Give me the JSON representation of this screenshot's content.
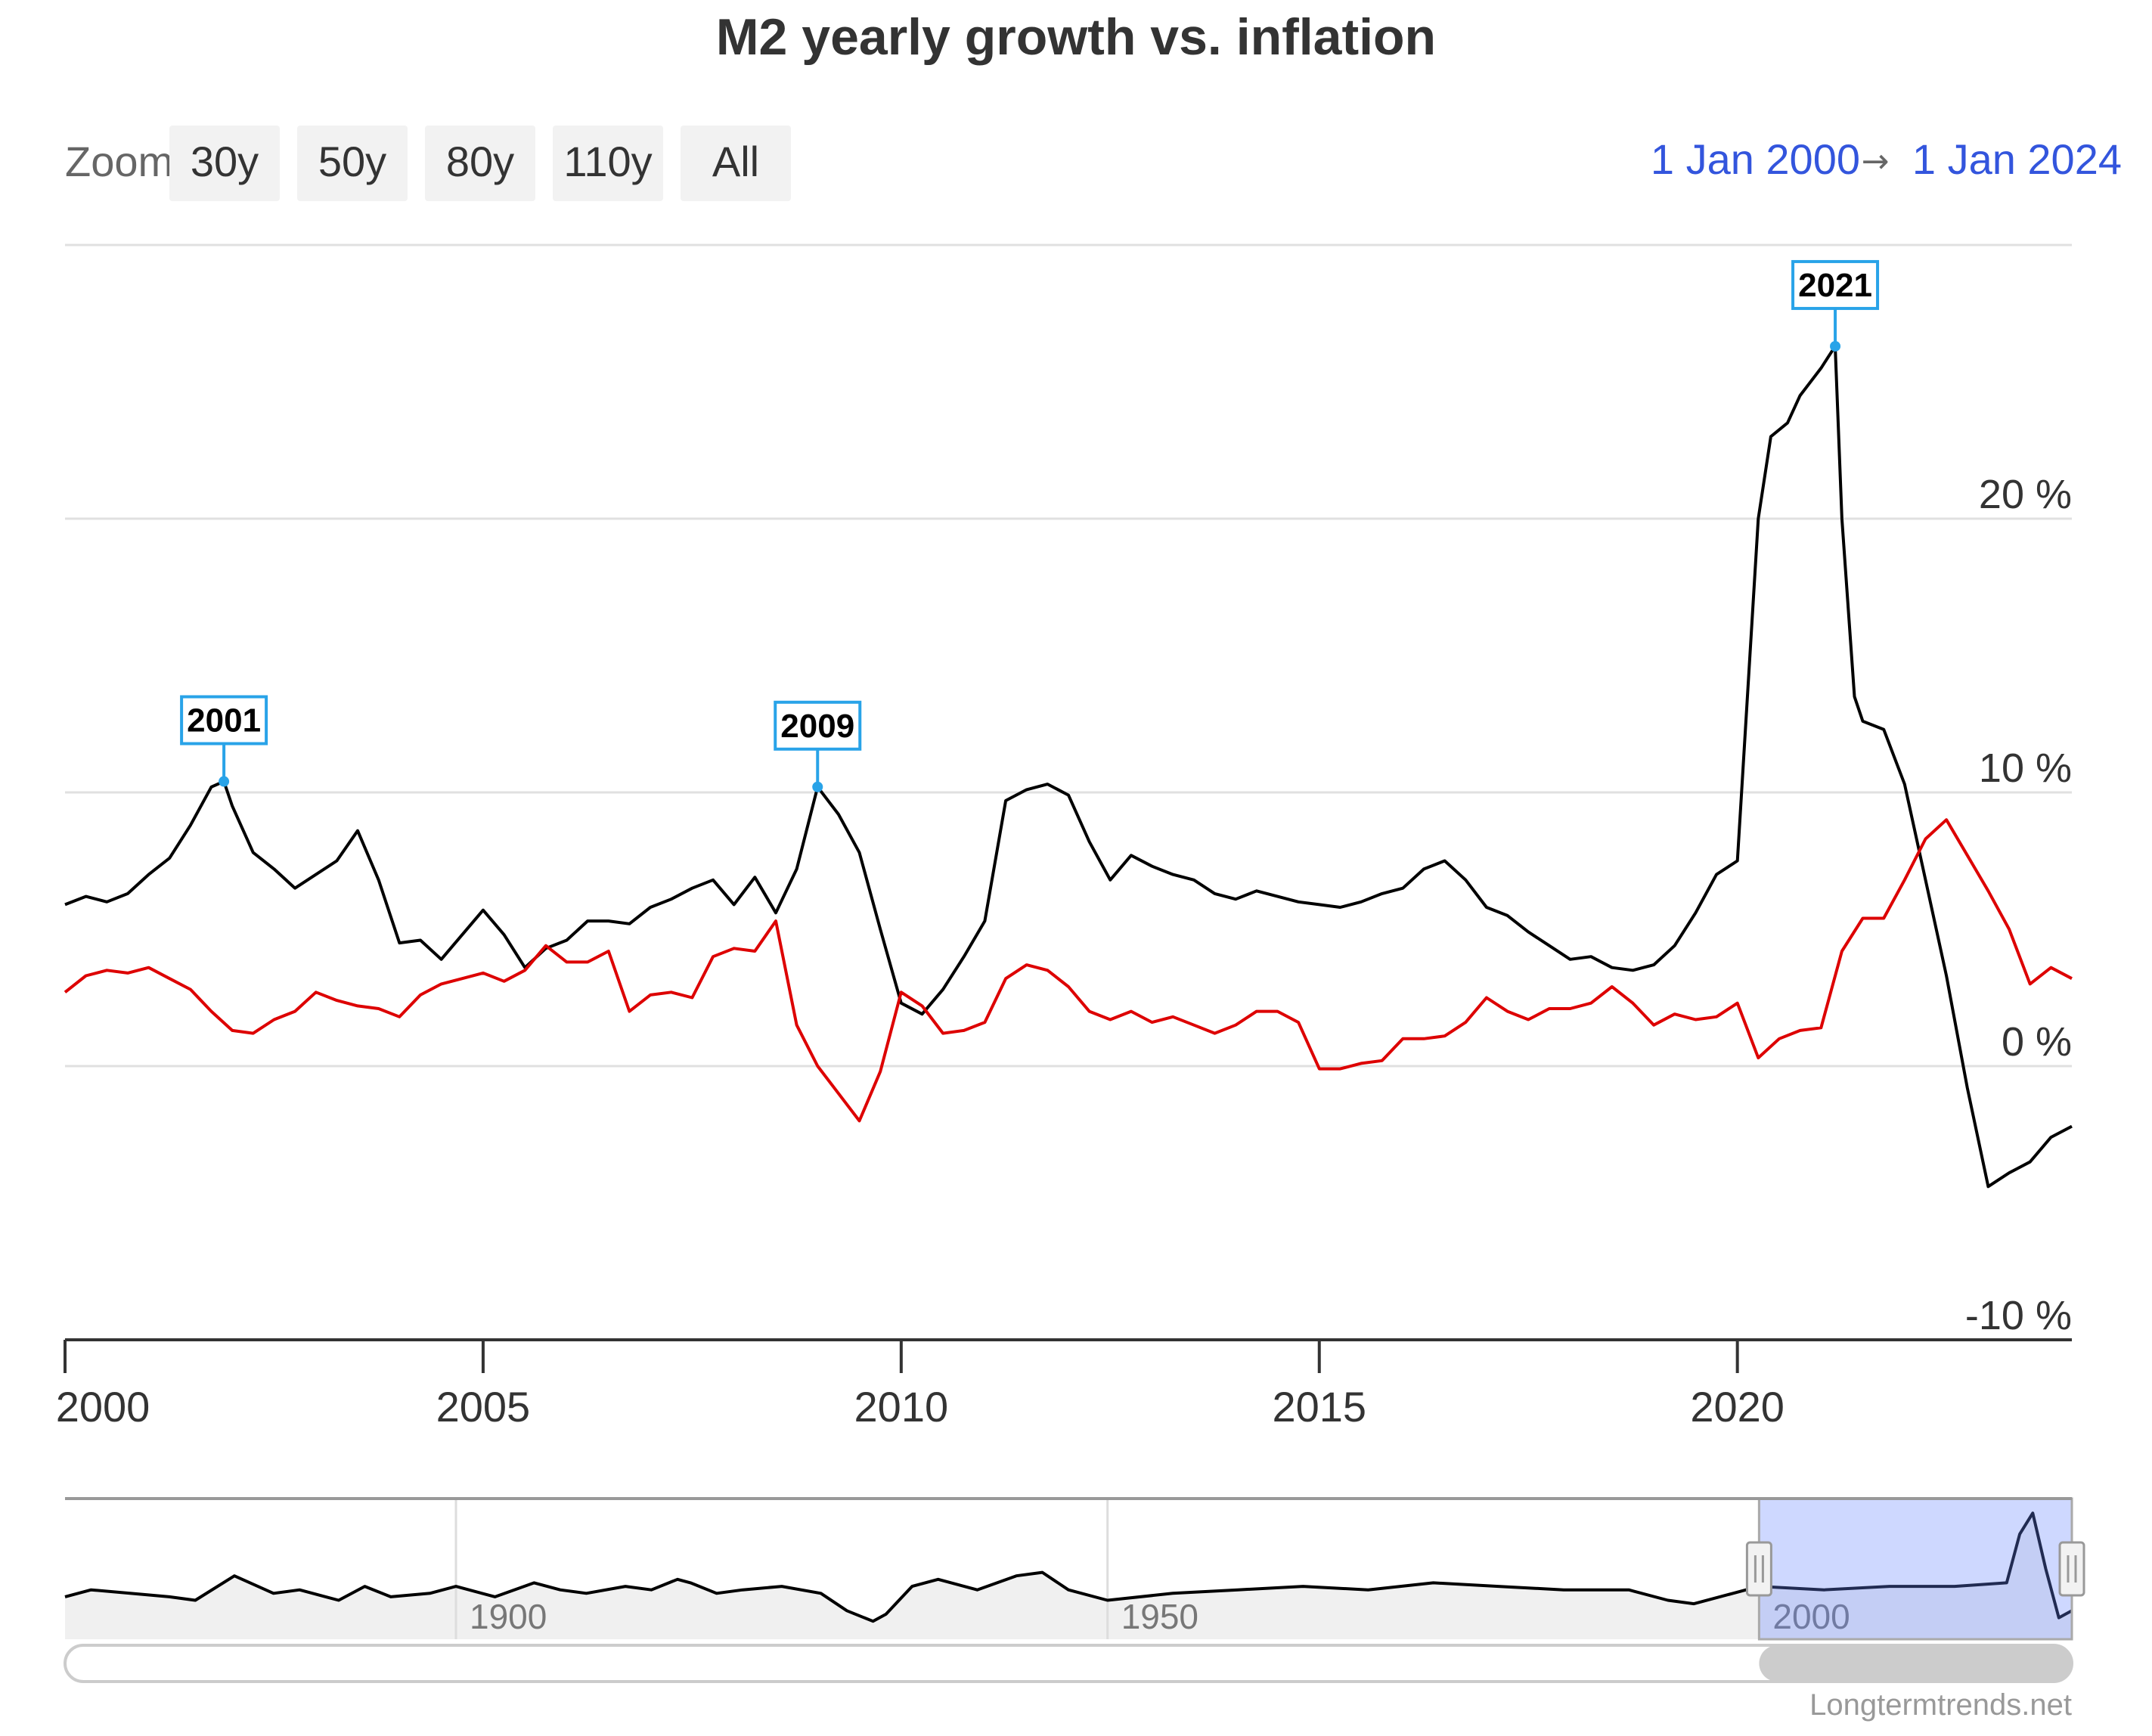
{
  "chart_data": {
    "type": "line",
    "title": "M2 yearly growth vs. inflation",
    "xlabel": "",
    "ylabel": "",
    "xlim": [
      2000.0,
      2024.0
    ],
    "ylim": [
      -10,
      30
    ],
    "x_ticks": [
      2000,
      2005,
      2010,
      2015,
      2020
    ],
    "y_ticks": [
      -10,
      0,
      10,
      20
    ],
    "y_tick_suffix": " %",
    "series": [
      {
        "name": "M2 yearly growth",
        "color": "#000000",
        "x": [
          2000.0,
          2000.25,
          2000.5,
          2000.75,
          2001.0,
          2001.25,
          2001.5,
          2001.75,
          2001.9,
          2002.0,
          2002.25,
          2002.5,
          2002.75,
          2003.0,
          2003.25,
          2003.5,
          2003.75,
          2004.0,
          2004.25,
          2004.5,
          2004.75,
          2005.0,
          2005.25,
          2005.5,
          2005.75,
          2006.0,
          2006.25,
          2006.5,
          2006.75,
          2007.0,
          2007.25,
          2007.5,
          2007.75,
          2008.0,
          2008.25,
          2008.5,
          2008.75,
          2009.0,
          2009.25,
          2009.5,
          2009.75,
          2010.0,
          2010.25,
          2010.5,
          2010.75,
          2011.0,
          2011.25,
          2011.5,
          2011.75,
          2012.0,
          2012.25,
          2012.5,
          2012.75,
          2013.0,
          2013.25,
          2013.5,
          2013.75,
          2014.0,
          2014.25,
          2014.5,
          2014.75,
          2015.0,
          2015.25,
          2015.5,
          2015.75,
          2016.0,
          2016.25,
          2016.5,
          2016.75,
          2017.0,
          2017.25,
          2017.5,
          2017.75,
          2018.0,
          2018.25,
          2018.5,
          2018.75,
          2019.0,
          2019.25,
          2019.5,
          2019.75,
          2020.0,
          2020.25,
          2020.4,
          2020.6,
          2020.75,
          2021.0,
          2021.17,
          2021.25,
          2021.4,
          2021.5,
          2021.75,
          2022.0,
          2022.25,
          2022.5,
          2022.75,
          2023.0,
          2023.25,
          2023.5,
          2023.75,
          2024.0
        ],
        "values": [
          5.9,
          6.2,
          6.0,
          6.3,
          7.0,
          7.6,
          8.8,
          10.2,
          10.4,
          9.5,
          7.8,
          7.2,
          6.5,
          7.0,
          7.5,
          8.6,
          6.8,
          4.5,
          4.6,
          3.9,
          4.8,
          5.7,
          4.8,
          3.6,
          4.3,
          4.6,
          5.3,
          5.3,
          5.2,
          5.8,
          6.1,
          6.5,
          6.8,
          5.9,
          6.9,
          5.6,
          7.2,
          10.2,
          9.2,
          7.8,
          5.0,
          2.3,
          1.9,
          2.8,
          4.0,
          5.3,
          9.7,
          10.1,
          10.3,
          9.9,
          8.2,
          6.8,
          7.7,
          7.3,
          7.0,
          6.8,
          6.3,
          6.1,
          6.4,
          6.2,
          6.0,
          5.9,
          5.8,
          6.0,
          6.3,
          6.5,
          7.2,
          7.5,
          6.8,
          5.8,
          5.5,
          4.9,
          4.4,
          3.9,
          4.0,
          3.6,
          3.5,
          3.7,
          4.4,
          5.6,
          7.0,
          7.5,
          20.0,
          23.0,
          23.5,
          24.5,
          25.5,
          26.3,
          20.0,
          13.5,
          12.6,
          12.3,
          10.3,
          6.8,
          3.3,
          -0.8,
          -4.4,
          -3.9,
          -3.5,
          -2.6,
          -2.2
        ]
      },
      {
        "name": "Inflation",
        "color": "#dd0000",
        "x": [
          2000.0,
          2000.25,
          2000.5,
          2000.75,
          2001.0,
          2001.25,
          2001.5,
          2001.75,
          2002.0,
          2002.25,
          2002.5,
          2002.75,
          2003.0,
          2003.25,
          2003.5,
          2003.75,
          2004.0,
          2004.25,
          2004.5,
          2004.75,
          2005.0,
          2005.25,
          2005.5,
          2005.75,
          2006.0,
          2006.25,
          2006.5,
          2006.75,
          2007.0,
          2007.25,
          2007.5,
          2007.75,
          2008.0,
          2008.25,
          2008.5,
          2008.75,
          2009.0,
          2009.25,
          2009.5,
          2009.75,
          2010.0,
          2010.25,
          2010.5,
          2010.75,
          2011.0,
          2011.25,
          2011.5,
          2011.75,
          2012.0,
          2012.25,
          2012.5,
          2012.75,
          2013.0,
          2013.25,
          2013.5,
          2013.75,
          2014.0,
          2014.25,
          2014.5,
          2014.75,
          2015.0,
          2015.25,
          2015.5,
          2015.75,
          2016.0,
          2016.25,
          2016.5,
          2016.75,
          2017.0,
          2017.25,
          2017.5,
          2017.75,
          2018.0,
          2018.25,
          2018.5,
          2018.75,
          2019.0,
          2019.25,
          2019.5,
          2019.75,
          2020.0,
          2020.25,
          2020.5,
          2020.75,
          2021.0,
          2021.25,
          2021.5,
          2021.75,
          2022.0,
          2022.25,
          2022.5,
          2022.75,
          2023.0,
          2023.25,
          2023.5,
          2023.75,
          2024.0
        ],
        "values": [
          2.7,
          3.3,
          3.5,
          3.4,
          3.6,
          3.2,
          2.8,
          2.0,
          1.3,
          1.2,
          1.7,
          2.0,
          2.7,
          2.4,
          2.2,
          2.1,
          1.8,
          2.6,
          3.0,
          3.2,
          3.4,
          3.1,
          3.5,
          4.4,
          3.8,
          3.8,
          4.2,
          2.0,
          2.6,
          2.7,
          2.5,
          4.0,
          4.3,
          4.2,
          5.3,
          1.5,
          0.0,
          -1.0,
          -2.0,
          -0.2,
          2.7,
          2.2,
          1.2,
          1.3,
          1.6,
          3.2,
          3.7,
          3.5,
          2.9,
          2.0,
          1.7,
          2.0,
          1.6,
          1.8,
          1.5,
          1.2,
          1.5,
          2.0,
          2.0,
          1.6,
          -0.1,
          -0.1,
          0.1,
          0.2,
          1.0,
          1.0,
          1.1,
          1.6,
          2.5,
          2.0,
          1.7,
          2.1,
          2.1,
          2.3,
          2.9,
          2.3,
          1.5,
          1.9,
          1.7,
          1.8,
          2.3,
          0.3,
          1.0,
          1.3,
          1.4,
          4.2,
          5.4,
          5.4,
          6.8,
          8.3,
          9.0,
          7.7,
          6.4,
          5.0,
          3.0,
          3.6,
          3.2
        ]
      }
    ],
    "annotations": [
      {
        "label": "2001",
        "x": 2001.9,
        "y": 10.4
      },
      {
        "label": "2009",
        "x": 2009.0,
        "y": 10.2
      },
      {
        "label": "2021",
        "x": 2021.17,
        "y": 26.3
      }
    ],
    "navigator": {
      "x_ticks": [
        1900,
        1950,
        2000
      ],
      "xlim": [
        1870,
        2024
      ],
      "selected_range": [
        2000,
        2024
      ],
      "x": [
        1870,
        1872,
        1875,
        1878,
        1880,
        1883,
        1886,
        1888,
        1890,
        1891,
        1893,
        1895,
        1898,
        1900,
        1903,
        1906,
        1908,
        1910,
        1913,
        1915,
        1917,
        1918,
        1920,
        1922,
        1925,
        1928,
        1930,
        1932,
        1933,
        1935,
        1937,
        1940,
        1943,
        1945,
        1947,
        1950,
        1955,
        1960,
        1965,
        1970,
        1975,
        1980,
        1985,
        1990,
        1993,
        1995,
        1998,
        2000,
        2005,
        2010,
        2015,
        2019,
        2020,
        2021,
        2022,
        2023,
        2024
      ],
      "values": [
        2,
        4,
        3,
        2,
        1,
        8,
        3,
        4,
        2,
        1,
        5,
        2,
        3,
        5,
        2,
        6,
        4,
        3,
        5,
        4,
        7,
        6,
        3,
        4,
        5,
        3,
        -2,
        -5,
        -3,
        5,
        7,
        4,
        8,
        9,
        4,
        1,
        3,
        4,
        5,
        4,
        6,
        5,
        4,
        4,
        1,
        0,
        3,
        5,
        4,
        5,
        5,
        6,
        20,
        26,
        10,
        -4,
        -2
      ]
    }
  },
  "ui": {
    "zoom_label": "Zoom",
    "zoom_buttons": [
      "30y",
      "50y",
      "80y",
      "110y",
      "All"
    ],
    "range_from": "1 Jan 2000",
    "range_arrow": "→",
    "range_to": "1 Jan 2024",
    "credit": "Longtermtrends.net"
  }
}
